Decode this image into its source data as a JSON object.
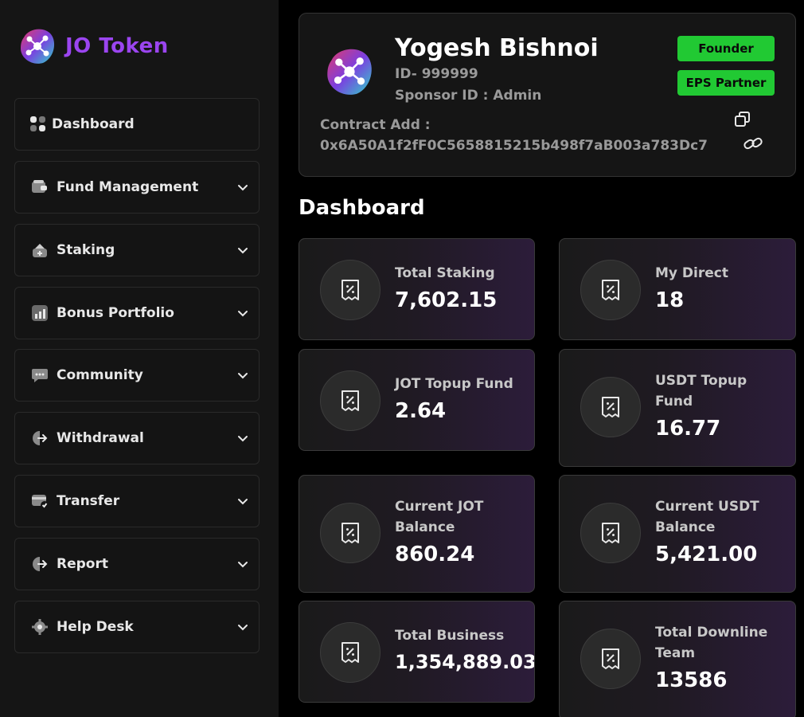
{
  "brand": {
    "name": "JO Token"
  },
  "sidebar": {
    "items": [
      {
        "label": "Dashboard",
        "icon": "dashboard-icon"
      },
      {
        "label": "Fund Management",
        "icon": "wallet-icon"
      },
      {
        "label": "Staking",
        "icon": "staking-icon"
      },
      {
        "label": "Bonus Portfolio",
        "icon": "chart-icon"
      },
      {
        "label": "Community",
        "icon": "chat-icon"
      },
      {
        "label": "Withdrawal",
        "icon": "withdraw-icon"
      },
      {
        "label": "Transfer",
        "icon": "card-check-icon"
      },
      {
        "label": "Report",
        "icon": "pie-icon"
      },
      {
        "label": "Help Desk",
        "icon": "gear-icon"
      }
    ]
  },
  "profile": {
    "name": "Yogesh Bishnoi",
    "id": "ID- 999999",
    "sponsor": "Sponsor ID : Admin",
    "contract_label": "Contract Add :",
    "contract_address": "0x6A50A1f2fF0C5658815215b498f7aB003a783Dc7",
    "badges": [
      "Founder",
      "EPS Partner"
    ]
  },
  "section_title": "Dashboard",
  "stats": [
    {
      "label": "Total Staking",
      "value": "7,602.15"
    },
    {
      "label": "My Direct",
      "value": "18"
    },
    {
      "label": "JOT Topup Fund",
      "value": "2.64"
    },
    {
      "label": "USDT Topup Fund",
      "value": "16.77"
    },
    {
      "label": "Current JOT Balance",
      "value": "860.24"
    },
    {
      "label": "Current USDT Balance",
      "value": "5,421.00"
    },
    {
      "label": "Total Business",
      "value": "1,354,889.03"
    },
    {
      "label": "Total Downline Team",
      "value": "13586"
    }
  ],
  "colors": {
    "brand": "#9b45f0",
    "badge": "#21c933",
    "background": "#000000",
    "sidebar": "#151515"
  }
}
